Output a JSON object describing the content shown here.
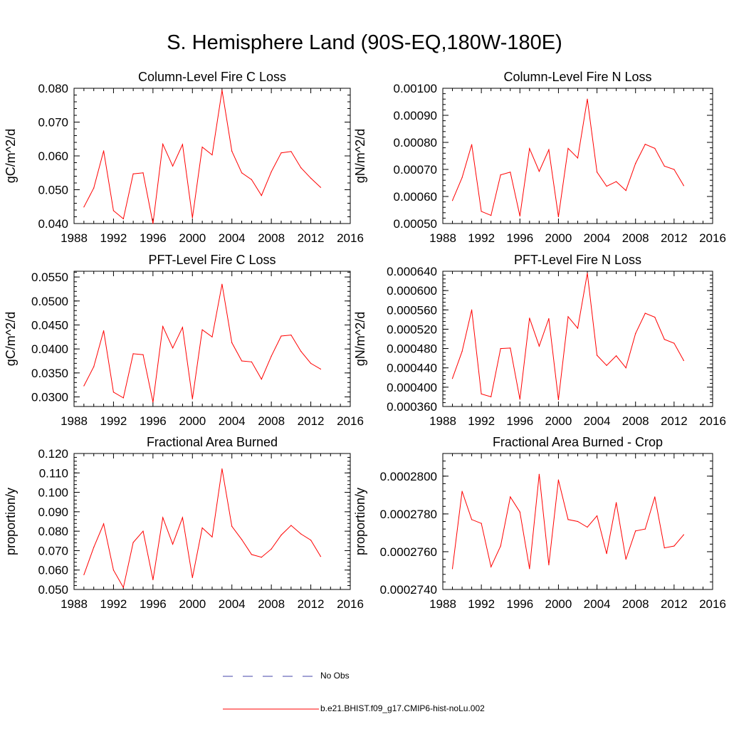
{
  "title": "S. Hemisphere Land (90S-EQ,180W-180E)",
  "legend": {
    "items": [
      {
        "label": "No Obs",
        "color": "#4444aa",
        "style": "dashed"
      },
      {
        "label": "b.e21.BHIST.f09_g17.CMIP6-hist-noLu.002",
        "color": "#ff0000",
        "style": "solid"
      }
    ]
  },
  "chart_data": [
    {
      "type": "line",
      "title": "Column-Level Fire C Loss",
      "ylabel": "gC/m^2/d",
      "xlim": [
        1988,
        2016
      ],
      "xticks": [
        1988,
        1992,
        1996,
        2000,
        2004,
        2008,
        2012,
        2016
      ],
      "ylim": [
        0.04,
        0.08
      ],
      "yticks": [
        "0.040",
        "0.050",
        "0.060",
        "0.070",
        "0.080"
      ],
      "series": [
        {
          "color": "#ff0000",
          "x": [
            1989,
            1990,
            1991,
            1992,
            1993,
            1994,
            1995,
            1996,
            1997,
            1998,
            1999,
            2000,
            2001,
            2002,
            2003,
            2004,
            2005,
            2006,
            2007,
            2008,
            2009,
            2010,
            2011,
            2012,
            2013
          ],
          "values": [
            0.0449,
            0.0505,
            0.0615,
            0.0438,
            0.0414,
            0.0547,
            0.055,
            0.04,
            0.0635,
            0.057,
            0.0634,
            0.0417,
            0.0626,
            0.0603,
            0.0794,
            0.0614,
            0.055,
            0.053,
            0.0483,
            0.0553,
            0.0609,
            0.0613,
            0.0565,
            0.0534,
            0.0507
          ]
        }
      ]
    },
    {
      "type": "line",
      "title": "Column-Level Fire N Loss",
      "ylabel": "gN/m^2/d",
      "xlim": [
        1988,
        2016
      ],
      "xticks": [
        1988,
        1992,
        1996,
        2000,
        2004,
        2008,
        2012,
        2016
      ],
      "ylim": [
        0.0005,
        0.001
      ],
      "yticks": [
        "0.00050",
        "0.00060",
        "0.00070",
        "0.00080",
        "0.00090",
        "0.00100"
      ],
      "series": [
        {
          "color": "#ff0000",
          "x": [
            1989,
            1990,
            1991,
            1992,
            1993,
            1994,
            1995,
            1996,
            1997,
            1998,
            1999,
            2000,
            2001,
            2002,
            2003,
            2004,
            2005,
            2006,
            2007,
            2008,
            2009,
            2010,
            2011,
            2012,
            2013
          ],
          "values": [
            0.000585,
            0.00067,
            0.000792,
            0.000545,
            0.00053,
            0.00068,
            0.00069,
            0.000528,
            0.000777,
            0.000693,
            0.000773,
            0.000525,
            0.000778,
            0.000742,
            0.00096,
            0.00069,
            0.000638,
            0.000655,
            0.000622,
            0.000722,
            0.000793,
            0.000778,
            0.000712,
            0.0007,
            0.00064
          ]
        }
      ]
    },
    {
      "type": "line",
      "title": "PFT-Level Fire C Loss",
      "ylabel": "gC/m^2/d",
      "xlim": [
        1988,
        2016
      ],
      "xticks": [
        1988,
        1992,
        1996,
        2000,
        2004,
        2008,
        2012,
        2016
      ],
      "ylim": [
        0.028,
        0.0562
      ],
      "yticks": [
        "0.0300",
        "0.0350",
        "0.0400",
        "0.0450",
        "0.0500",
        "0.0550"
      ],
      "series": [
        {
          "color": "#ff0000",
          "x": [
            1989,
            1990,
            1991,
            1992,
            1993,
            1994,
            1995,
            1996,
            1997,
            1998,
            1999,
            2000,
            2001,
            2002,
            2003,
            2004,
            2005,
            2006,
            2007,
            2008,
            2009,
            2010,
            2011,
            2012,
            2013
          ],
          "values": [
            0.0323,
            0.0363,
            0.0438,
            0.031,
            0.0298,
            0.039,
            0.0388,
            0.0289,
            0.0447,
            0.0402,
            0.0445,
            0.0296,
            0.044,
            0.0425,
            0.0535,
            0.0413,
            0.0375,
            0.0373,
            0.0337,
            0.0385,
            0.0427,
            0.0429,
            0.0395,
            0.037,
            0.0358
          ]
        }
      ]
    },
    {
      "type": "line",
      "title": "PFT-Level Fire N Loss",
      "ylabel": "gN/m^2/d",
      "xlim": [
        1988,
        2016
      ],
      "xticks": [
        1988,
        1992,
        1996,
        2000,
        2004,
        2008,
        2012,
        2016
      ],
      "ylim": [
        0.00036,
        0.00064
      ],
      "yticks": [
        "0.000360",
        "0.000400",
        "0.000440",
        "0.000480",
        "0.000520",
        "0.000560",
        "0.000600",
        "0.000640"
      ],
      "series": [
        {
          "color": "#ff0000",
          "x": [
            1989,
            1990,
            1991,
            1992,
            1993,
            1994,
            1995,
            1996,
            1997,
            1998,
            1999,
            2000,
            2001,
            2002,
            2003,
            2004,
            2005,
            2006,
            2007,
            2008,
            2009,
            2010,
            2011,
            2012,
            2013
          ],
          "values": [
            0.000418,
            0.000474,
            0.00056,
            0.000386,
            0.00038,
            0.00048,
            0.000481,
            0.000375,
            0.000543,
            0.000485,
            0.000542,
            0.000374,
            0.000546,
            0.000522,
            0.000636,
            0.000466,
            0.000445,
            0.000465,
            0.00044,
            0.000511,
            0.000553,
            0.000545,
            0.000499,
            0.000491,
            0.000455
          ]
        }
      ]
    },
    {
      "type": "line",
      "title": "Fractional Area Burned",
      "ylabel": "proportion/y",
      "xlim": [
        1988,
        2016
      ],
      "xticks": [
        1988,
        1992,
        1996,
        2000,
        2004,
        2008,
        2012,
        2016
      ],
      "ylim": [
        0.05,
        0.12
      ],
      "yticks": [
        "0.050",
        "0.060",
        "0.070",
        "0.080",
        "0.090",
        "0.100",
        "0.110",
        "0.120"
      ],
      "series": [
        {
          "color": "#ff0000",
          "x": [
            1989,
            1990,
            1991,
            1992,
            1993,
            1994,
            1995,
            1996,
            1997,
            1998,
            1999,
            2000,
            2001,
            2002,
            2003,
            2004,
            2005,
            2006,
            2007,
            2008,
            2009,
            2010,
            2011,
            2012,
            2013
          ],
          "values": [
            0.0576,
            0.0717,
            0.0838,
            0.06,
            0.051,
            0.0742,
            0.08,
            0.055,
            0.087,
            0.0733,
            0.087,
            0.0561,
            0.0817,
            0.077,
            0.1121,
            0.0825,
            0.0757,
            0.068,
            0.0666,
            0.0708,
            0.078,
            0.083,
            0.0786,
            0.0754,
            0.067
          ]
        }
      ]
    },
    {
      "type": "line",
      "title": "Fractional Area Burned - Crop",
      "ylabel": "proportion/y",
      "xlim": [
        1988,
        2016
      ],
      "xticks": [
        1988,
        1992,
        1996,
        2000,
        2004,
        2008,
        2012,
        2016
      ],
      "ylim": [
        0.000274,
        0.0002812
      ],
      "yticks": [
        "0.0002740",
        "0.0002760",
        "0.0002780",
        "0.0002800"
      ],
      "series": [
        {
          "color": "#ff0000",
          "x": [
            1989,
            1990,
            1991,
            1992,
            1993,
            1994,
            1995,
            1996,
            1997,
            1998,
            1999,
            2000,
            2001,
            2002,
            2003,
            2004,
            2005,
            2006,
            2007,
            2008,
            2009,
            2010,
            2011,
            2012,
            2013
          ],
          "values": [
            0.0002751,
            0.0002792,
            0.0002777,
            0.0002775,
            0.0002752,
            0.0002763,
            0.0002789,
            0.0002781,
            0.0002751,
            0.0002801,
            0.0002753,
            0.0002798,
            0.0002777,
            0.0002776,
            0.0002773,
            0.0002779,
            0.0002759,
            0.0002786,
            0.0002756,
            0.0002771,
            0.0002772,
            0.0002789,
            0.0002762,
            0.0002763,
            0.0002769
          ]
        }
      ]
    }
  ]
}
